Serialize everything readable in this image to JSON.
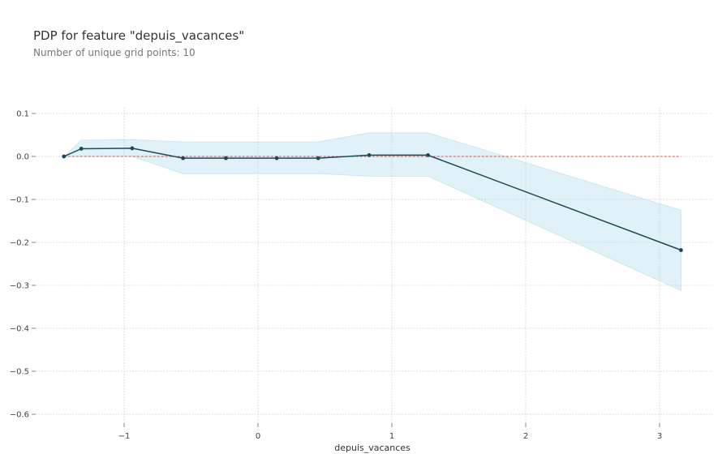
{
  "chart_data": {
    "type": "line",
    "title": "PDP for feature \"depuis_vacances\"",
    "subtitle": "Number of unique grid points: 10",
    "xlabel": "depuis_vacances",
    "ylabel": "",
    "xlim": [
      -1.68,
      3.4
    ],
    "ylim": [
      -0.625,
      0.125
    ],
    "xticks": [
      -1,
      0,
      1,
      2,
      3
    ],
    "xtick_labels": [
      "−1",
      "0",
      "1",
      "2",
      "3"
    ],
    "yticks": [
      0.1,
      0.0,
      -0.1,
      -0.2,
      -0.3,
      -0.4,
      -0.5,
      -0.6
    ],
    "ytick_labels": [
      "0.1",
      "0.0",
      "−0.1",
      "−0.2",
      "−0.3",
      "−0.4",
      "−0.5",
      "−0.6"
    ],
    "grid": true,
    "series": [
      {
        "x": [
          -1.45,
          -1.32,
          -0.94,
          -0.56,
          -0.24,
          0.14,
          0.45,
          0.83,
          1.27,
          3.16
        ],
        "values": [
          0.0,
          0.018,
          0.019,
          -0.004,
          -0.004,
          -0.004,
          -0.004,
          0.003,
          0.003,
          -0.218
        ],
        "upper": [
          0.0,
          0.038,
          0.039,
          0.034,
          0.034,
          0.034,
          0.034,
          0.055,
          0.055,
          -0.125
        ],
        "lower": [
          0.0,
          0.0,
          0.0,
          -0.04,
          -0.04,
          -0.04,
          -0.04,
          -0.046,
          -0.046,
          -0.312
        ],
        "color": "#1a4a5a",
        "band_color": "#a8d8ea"
      }
    ],
    "reference_line": {
      "y": 0.0,
      "color": "#d9534f"
    }
  }
}
